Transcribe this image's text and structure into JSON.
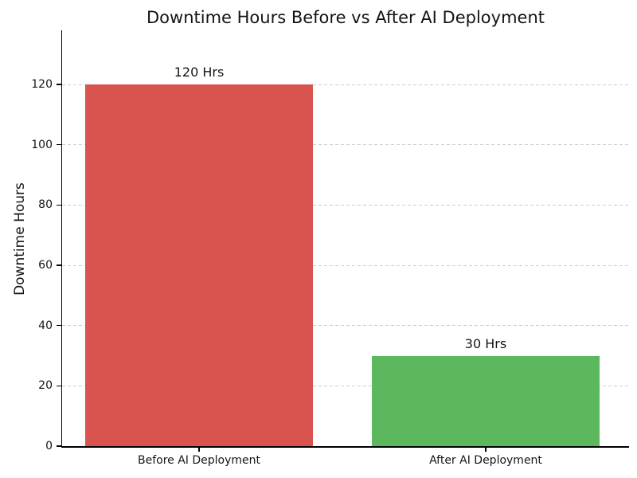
{
  "chart_data": {
    "type": "bar",
    "title": "Downtime Hours Before vs After AI Deployment",
    "ylabel": "Downtime Hours",
    "xlabel": "",
    "categories": [
      "Before AI Deployment",
      "After AI Deployment"
    ],
    "values": [
      120,
      30
    ],
    "bar_labels": [
      "120 Hrs",
      "30 Hrs"
    ],
    "bar_colors": [
      "#d9534f",
      "#5cb85c"
    ],
    "yticks": [
      0,
      20,
      40,
      60,
      80,
      100,
      120
    ],
    "ylim": [
      0,
      138
    ],
    "grid": "horizontal dashed gray",
    "legend": "none",
    "background_color": "#ffffff",
    "spine_color": "#000000"
  }
}
